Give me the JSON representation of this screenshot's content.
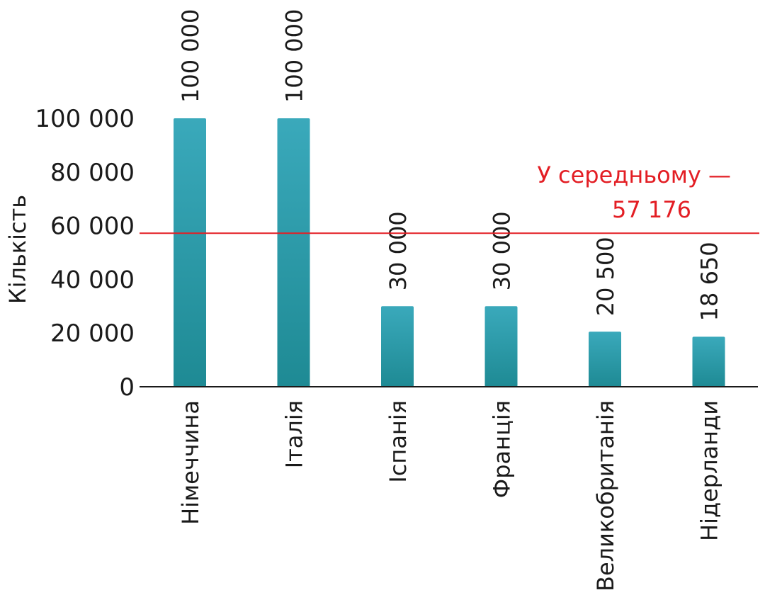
{
  "chart_data": {
    "type": "bar",
    "title": "",
    "xlabel": "",
    "ylabel": "Кількість",
    "ylim": [
      0,
      100000
    ],
    "yticks": [
      0,
      20000,
      40000,
      60000,
      80000,
      100000
    ],
    "ytick_labels": [
      "0",
      "20 000",
      "40 000",
      "60 000",
      "80 000",
      "100 000"
    ],
    "categories": [
      "Німеччина",
      "Італія",
      "Іспанія",
      "Франція",
      "Великобританія",
      "Нідерланди"
    ],
    "values": [
      100000,
      100000,
      30000,
      30000,
      20500,
      18650
    ],
    "value_labels": [
      "100 000",
      "100 000",
      "30 000",
      "30 000",
      "20 500",
      "18 650"
    ],
    "grid": false,
    "legend": "none",
    "average": {
      "value": 57176,
      "label_line1": "У середньому —",
      "label_line2": "57 176"
    },
    "colors": {
      "bar_top": "#3aa9bb",
      "bar_bottom": "#1e8a94",
      "average_line": "#e31e24",
      "axis": "#1a1a1a"
    }
  }
}
